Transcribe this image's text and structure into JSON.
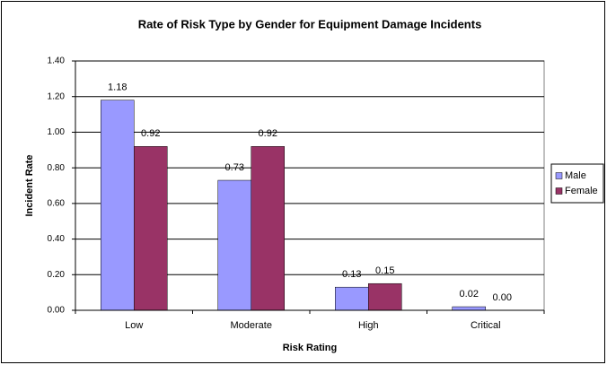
{
  "chart_data": {
    "type": "bar",
    "title": "Rate of Risk Type by Gender for Equipment Damage Incidents",
    "x_label": "Risk Rating",
    "y_label": "Incident Rate",
    "categories": [
      "Low",
      "Moderate",
      "High",
      "Critical"
    ],
    "series": [
      {
        "name": "Male",
        "color": "#9999ff",
        "values": [
          1.18,
          0.73,
          0.13,
          0.02
        ],
        "value_labels": [
          "1.18",
          "0.73",
          "0.13",
          "0.02"
        ]
      },
      {
        "name": "Female",
        "color": "#993366",
        "values": [
          0.92,
          0.92,
          0.15,
          0
        ],
        "value_labels": [
          "0.92",
          "0.92",
          "0.15",
          "0.00"
        ]
      }
    ],
    "ylim": [
      0,
      1.4
    ],
    "yticks": [
      {
        "value": 0,
        "label": "0.00"
      },
      {
        "value": 0.2,
        "label": "0.20"
      },
      {
        "value": 0.4,
        "label": "0.40"
      },
      {
        "value": 0.6,
        "label": "0.60"
      },
      {
        "value": 0.8,
        "label": "0.80"
      },
      {
        "value": 1,
        "label": "1.00"
      },
      {
        "value": 1.2,
        "label": "1.20"
      },
      {
        "value": 1.4,
        "label": "1.40"
      }
    ],
    "grid": true,
    "legend": "right"
  }
}
